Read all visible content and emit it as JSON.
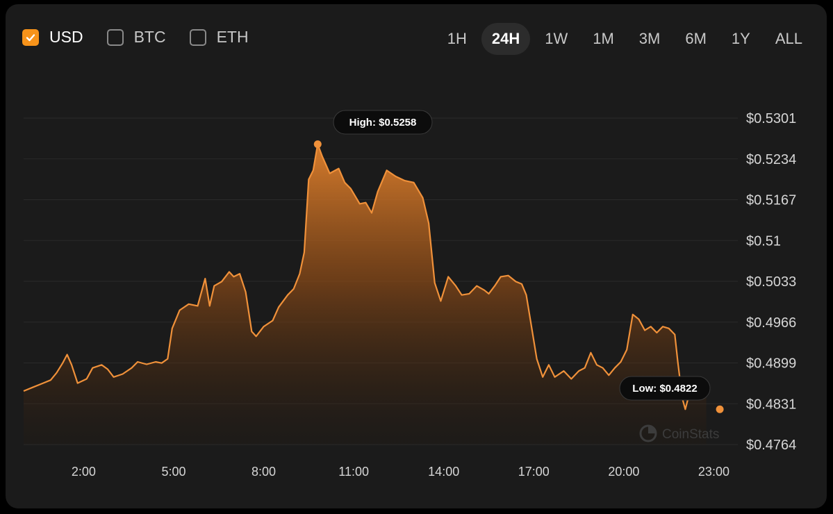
{
  "currencies": [
    {
      "label": "USD",
      "checked": true
    },
    {
      "label": "BTC",
      "checked": false
    },
    {
      "label": "ETH",
      "checked": false
    }
  ],
  "ranges": [
    {
      "label": "1H",
      "active": false
    },
    {
      "label": "24H",
      "active": true
    },
    {
      "label": "1W",
      "active": false
    },
    {
      "label": "1M",
      "active": false
    },
    {
      "label": "3M",
      "active": false
    },
    {
      "label": "6M",
      "active": false
    },
    {
      "label": "1Y",
      "active": false
    },
    {
      "label": "ALL",
      "active": false
    }
  ],
  "watermark": "CoinStats",
  "colors": {
    "accent": "#f7931a",
    "line": "#f0913a",
    "background": "#1b1b1b",
    "text": "#d6d6d6"
  },
  "chart_data": {
    "type": "area",
    "title": "",
    "xlabel": "",
    "ylabel": "",
    "x_unit": "hours",
    "x_ticks": [
      {
        "label": "2:00",
        "x": 2
      },
      {
        "label": "5:00",
        "x": 5
      },
      {
        "label": "8:00",
        "x": 8
      },
      {
        "label": "11:00",
        "x": 11
      },
      {
        "label": "14:00",
        "x": 14
      },
      {
        "label": "17:00",
        "x": 17
      },
      {
        "label": "20:00",
        "x": 20
      },
      {
        "label": "23:00",
        "x": 23
      }
    ],
    "y_ticks": [
      "$0.5301",
      "$0.5234",
      "$0.5167",
      "$0.51",
      "$0.5033",
      "$0.4966",
      "$0.4899",
      "$0.4831",
      "$0.4764"
    ],
    "xlim": [
      0.0,
      23.8
    ],
    "ylim": [
      0.4764,
      0.5301
    ],
    "grid": "horizontal",
    "high": {
      "label": "High: $0.5258",
      "x": 9.8,
      "y": 0.5258
    },
    "low": {
      "label": "Low: $0.4822",
      "x": 23.2,
      "y": 0.4822
    },
    "series": [
      {
        "values": [
          [
            0.0,
            0.4852
          ],
          [
            0.3,
            0.4858
          ],
          [
            0.6,
            0.4864
          ],
          [
            0.9,
            0.487
          ],
          [
            1.1,
            0.4882
          ],
          [
            1.3,
            0.4898
          ],
          [
            1.45,
            0.4912
          ],
          [
            1.6,
            0.4895
          ],
          [
            1.8,
            0.4865
          ],
          [
            2.1,
            0.4872
          ],
          [
            2.3,
            0.489
          ],
          [
            2.6,
            0.4895
          ],
          [
            2.8,
            0.4888
          ],
          [
            3.0,
            0.4875
          ],
          [
            3.3,
            0.488
          ],
          [
            3.6,
            0.489
          ],
          [
            3.8,
            0.49
          ],
          [
            4.1,
            0.4896
          ],
          [
            4.4,
            0.49
          ],
          [
            4.6,
            0.4898
          ],
          [
            4.8,
            0.4905
          ],
          [
            4.95,
            0.4955
          ],
          [
            5.2,
            0.4985
          ],
          [
            5.5,
            0.4995
          ],
          [
            5.8,
            0.4992
          ],
          [
            5.9,
            0.501
          ],
          [
            6.05,
            0.5037
          ],
          [
            6.2,
            0.4992
          ],
          [
            6.35,
            0.5025
          ],
          [
            6.6,
            0.5032
          ],
          [
            6.85,
            0.5048
          ],
          [
            7.0,
            0.504
          ],
          [
            7.2,
            0.5045
          ],
          [
            7.4,
            0.5015
          ],
          [
            7.6,
            0.495
          ],
          [
            7.75,
            0.4942
          ],
          [
            8.0,
            0.4958
          ],
          [
            8.3,
            0.4968
          ],
          [
            8.5,
            0.499
          ],
          [
            8.8,
            0.501
          ],
          [
            9.0,
            0.502
          ],
          [
            9.2,
            0.5045
          ],
          [
            9.35,
            0.508
          ],
          [
            9.5,
            0.52
          ],
          [
            9.65,
            0.5215
          ],
          [
            9.8,
            0.5258
          ],
          [
            9.95,
            0.5238
          ],
          [
            10.2,
            0.521
          ],
          [
            10.5,
            0.5218
          ],
          [
            10.7,
            0.5195
          ],
          [
            10.9,
            0.5185
          ],
          [
            11.2,
            0.516
          ],
          [
            11.4,
            0.5162
          ],
          [
            11.6,
            0.5145
          ],
          [
            11.8,
            0.518
          ],
          [
            12.1,
            0.5215
          ],
          [
            12.4,
            0.5205
          ],
          [
            12.7,
            0.5198
          ],
          [
            13.0,
            0.5195
          ],
          [
            13.3,
            0.517
          ],
          [
            13.5,
            0.5128
          ],
          [
            13.7,
            0.503
          ],
          [
            13.9,
            0.5
          ],
          [
            14.15,
            0.504
          ],
          [
            14.4,
            0.5025
          ],
          [
            14.6,
            0.501
          ],
          [
            14.85,
            0.5012
          ],
          [
            15.1,
            0.5025
          ],
          [
            15.35,
            0.5018
          ],
          [
            15.5,
            0.5012
          ],
          [
            15.7,
            0.5025
          ],
          [
            15.9,
            0.504
          ],
          [
            16.15,
            0.5042
          ],
          [
            16.4,
            0.5032
          ],
          [
            16.6,
            0.5028
          ],
          [
            16.75,
            0.501
          ],
          [
            16.9,
            0.4965
          ],
          [
            17.1,
            0.4905
          ],
          [
            17.3,
            0.4875
          ],
          [
            17.5,
            0.4895
          ],
          [
            17.7,
            0.4875
          ],
          [
            18.0,
            0.4885
          ],
          [
            18.25,
            0.4872
          ],
          [
            18.5,
            0.4885
          ],
          [
            18.7,
            0.489
          ],
          [
            18.9,
            0.4915
          ],
          [
            19.1,
            0.4895
          ],
          [
            19.3,
            0.489
          ],
          [
            19.5,
            0.4878
          ],
          [
            19.7,
            0.489
          ],
          [
            19.9,
            0.49
          ],
          [
            20.1,
            0.492
          ],
          [
            20.3,
            0.4978
          ],
          [
            20.5,
            0.497
          ],
          [
            20.7,
            0.4952
          ],
          [
            20.9,
            0.4958
          ],
          [
            21.1,
            0.4948
          ],
          [
            21.3,
            0.4958
          ],
          [
            21.5,
            0.4955
          ],
          [
            21.7,
            0.4945
          ],
          [
            21.8,
            0.49
          ],
          [
            21.95,
            0.484
          ],
          [
            22.05,
            0.4822
          ],
          [
            22.25,
            0.486
          ],
          [
            22.5,
            0.4868
          ],
          [
            22.75,
            0.4862
          ]
        ]
      }
    ]
  }
}
